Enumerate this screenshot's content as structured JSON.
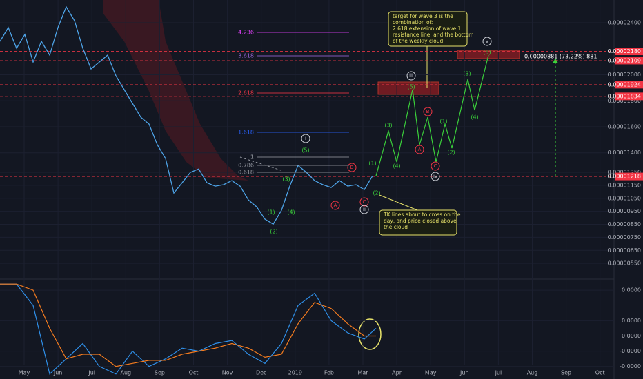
{
  "chart_data": {
    "type": "line",
    "x_labels": [
      "May",
      "Jun",
      "Jul",
      "Aug",
      "Sep",
      "Oct",
      "Nov",
      "Dec",
      "2019",
      "Feb",
      "Mar",
      "Apr",
      "May",
      "Jun",
      "Jul",
      "Aug",
      "Sep",
      "Oct"
    ],
    "ylim": [
      4.29e-06,
      2.575e-05
    ],
    "yticks": [
      {
        "value": 2.4e-05,
        "label": "0.00002400"
      },
      {
        "value": 2e-05,
        "label": "0.00002000"
      },
      {
        "value": 1.8e-05,
        "label": "0.00001800"
      },
      {
        "value": 1.6e-05,
        "label": "0.00001600"
      },
      {
        "value": 1.4e-05,
        "label": "0.00001400"
      },
      {
        "value": 1.25e-05,
        "label": "0.00001250"
      },
      {
        "value": 1.15e-05,
        "label": "0.00001150"
      },
      {
        "value": 1.05e-05,
        "label": "0.00001050"
      },
      {
        "value": 9.5e-06,
        "label": "0.00000950"
      },
      {
        "value": 8.5e-06,
        "label": "0.00000850"
      },
      {
        "value": 7.5e-06,
        "label": "0.00000750"
      },
      {
        "value": 6.5e-06,
        "label": "0.00000650"
      },
      {
        "value": 5.5e-06,
        "label": "0.00000550"
      }
    ],
    "levels": [
      {
        "value": 2.18e-05,
        "label": "0.00002180"
      },
      {
        "value": 2.109e-05,
        "label": "0.00002109"
      },
      {
        "value": 1.924e-05,
        "label": "0.00001924"
      },
      {
        "value": 1.834e-05,
        "label": "0.00001834"
      },
      {
        "value": 1.218e-05,
        "label": "0.00001218"
      }
    ],
    "level_color": "#f23645",
    "price": {
      "color": "#4ea4e8",
      "values": [
        2.257e-05,
        2.363e-05,
        2.204e-05,
        2.31e-05,
        2.098e-05,
        2.257e-05,
        2.151e-05,
        2.363e-05,
        2.522e-05,
        2.416e-05,
        2.204e-05,
        2.045e-05,
        2.098e-05,
        2.151e-05,
        1.992e-05,
        1.886e-05,
        1.78e-05,
        1.674e-05,
        1.621e-05,
        1.462e-05,
        1.356e-05,
        1.091e-05,
        1.17e-05,
        1.25e-05,
        1.276e-05,
        1.17e-05,
        1.144e-05,
        1.155e-05,
        1.186e-05,
        1.144e-05,
        1.038e-05,
        9.85e-06,
        8.9e-06,
        8.52e-06,
        9.58e-06,
        1.144e-05,
        1.303e-05,
        1.25e-05,
        1.186e-05,
        1.155e-05,
        1.133e-05,
        1.186e-05,
        1.144e-05,
        1.155e-05,
        1.117e-05,
        1.223e-05
      ]
    },
    "projection": {
      "color": "#3bd23b",
      "values": [
        1.223e-05,
        1.568e-05,
        1.329e-05,
        1.886e-05,
        1.462e-05,
        1.674e-05,
        1.329e-05,
        1.621e-05,
        1.435e-05,
        1.965e-05,
        1.727e-05,
        2.151e-05
      ]
    },
    "fib_labels": [
      {
        "text": "4.236",
        "color": "#e040fb"
      },
      {
        "text": "3.618",
        "color": "#9c6ade"
      },
      {
        "text": "2.618",
        "color": "#f23645"
      },
      {
        "text": "1.618",
        "color": "#2962ff"
      },
      {
        "text": "1",
        "color": "#9598a1"
      },
      {
        "text": "0.786",
        "color": "#9598a1"
      },
      {
        "text": "0.618",
        "color": "#9598a1"
      }
    ],
    "wave_labels": [
      "i",
      "(5)",
      "(3)",
      "(1)",
      "(4)",
      "(2)",
      "B",
      "A",
      "C",
      "ii",
      "(1)",
      "(2)",
      "(3)",
      "(4)",
      "(5)",
      "iii",
      "A",
      "B",
      "C",
      "iv",
      "(1)",
      "(2)",
      "(3)",
      "(4)",
      "(5)",
      "v"
    ],
    "notes": [
      {
        "lines": [
          "target for wave 3 is the",
          "combination of:",
          "2.618 extension of wave 1,",
          "resistance line, and the bottom",
          "of the weekly cloud"
        ]
      },
      {
        "lines": [
          "TK lines about to cross on the",
          "day, and price closed above",
          "the cloud"
        ]
      }
    ],
    "measure": "0.00000881 (73.22%) 881",
    "oscillator": {
      "ylim": [
        -2.6,
        3.5
      ],
      "yticks": [
        {
          "value": 3,
          "label": "0.0000"
        },
        {
          "value": 1,
          "label": "0.0000"
        },
        {
          "value": 0,
          "label": "0.0000"
        },
        {
          "value": -1,
          "label": "-0.0000"
        },
        {
          "value": -2,
          "label": "-0.0000"
        }
      ],
      "series": [
        {
          "color": "#2f8fe8",
          "values": [
            3.4,
            3.4,
            2.0,
            -2.5,
            -1.5,
            -0.5,
            -2.0,
            -2.5,
            -1.0,
            -2.0,
            -1.5,
            -0.8,
            -1.0,
            -0.5,
            -0.3,
            -1.2,
            -1.8,
            -0.5,
            2.0,
            2.8,
            1.0,
            0.2,
            -0.2,
            0.5
          ]
        },
        {
          "color": "#f57c1f",
          "values": [
            3.4,
            3.4,
            3.0,
            0.5,
            -1.5,
            -1.2,
            -1.2,
            -2.0,
            -1.8,
            -1.6,
            -1.6,
            -1.2,
            -1.0,
            -0.8,
            -0.5,
            -0.8,
            -1.4,
            -1.2,
            0.8,
            2.2,
            1.8,
            0.8,
            0.0,
            0.0
          ]
        }
      ]
    }
  }
}
